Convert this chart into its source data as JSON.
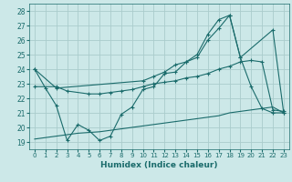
{
  "xlabel": "Humidex (Indice chaleur)",
  "bg_color": "#cce8e8",
  "grid_color": "#aacccc",
  "line_color": "#1a6b6b",
  "xlim": [
    -0.5,
    23.5
  ],
  "ylim": [
    18.5,
    28.5
  ],
  "yticks": [
    19,
    20,
    21,
    22,
    23,
    24,
    25,
    26,
    27,
    28
  ],
  "xticks": [
    0,
    1,
    2,
    3,
    4,
    5,
    6,
    7,
    8,
    9,
    10,
    11,
    12,
    13,
    14,
    15,
    16,
    17,
    18,
    19,
    20,
    21,
    22,
    23
  ],
  "line1_x": [
    0,
    1,
    2,
    3,
    4,
    5,
    6,
    7,
    8,
    9,
    10,
    11,
    12,
    13,
    14,
    15,
    16,
    17,
    18,
    19,
    20,
    21,
    22,
    23
  ],
  "line1_y": [
    24.0,
    22.7,
    21.5,
    19.1,
    20.2,
    19.8,
    19.1,
    19.4,
    20.9,
    21.4,
    22.6,
    22.8,
    23.7,
    23.8,
    24.5,
    25.0,
    26.4,
    27.4,
    27.7,
    24.8,
    22.8,
    21.3,
    21.0,
    21.0
  ],
  "line2_x": [
    0,
    2,
    10,
    11,
    12,
    13,
    14,
    15,
    16,
    17,
    18,
    19,
    22,
    23
  ],
  "line2_y": [
    24.0,
    22.7,
    23.2,
    23.5,
    23.8,
    24.3,
    24.5,
    24.8,
    26.0,
    26.8,
    27.7,
    24.8,
    26.7,
    21.0
  ],
  "line3_x": [
    0,
    2,
    3,
    5,
    6,
    7,
    8,
    9,
    10,
    11,
    12,
    13,
    14,
    15,
    16,
    17,
    18,
    19,
    20,
    21,
    22,
    23
  ],
  "line3_y": [
    22.8,
    22.8,
    22.5,
    22.3,
    22.3,
    22.4,
    22.5,
    22.6,
    22.8,
    23.0,
    23.1,
    23.2,
    23.4,
    23.5,
    23.7,
    24.0,
    24.2,
    24.5,
    24.6,
    24.5,
    21.2,
    21.1
  ],
  "line4_x": [
    0,
    1,
    2,
    3,
    4,
    5,
    6,
    7,
    8,
    9,
    10,
    11,
    12,
    13,
    14,
    15,
    16,
    17,
    18,
    19,
    20,
    21,
    22,
    23
  ],
  "line4_y": [
    19.2,
    19.3,
    19.4,
    19.5,
    19.6,
    19.65,
    19.7,
    19.8,
    19.9,
    20.0,
    20.1,
    20.2,
    20.3,
    20.4,
    20.5,
    20.6,
    20.7,
    20.8,
    21.0,
    21.1,
    21.2,
    21.3,
    21.4,
    21.0
  ]
}
